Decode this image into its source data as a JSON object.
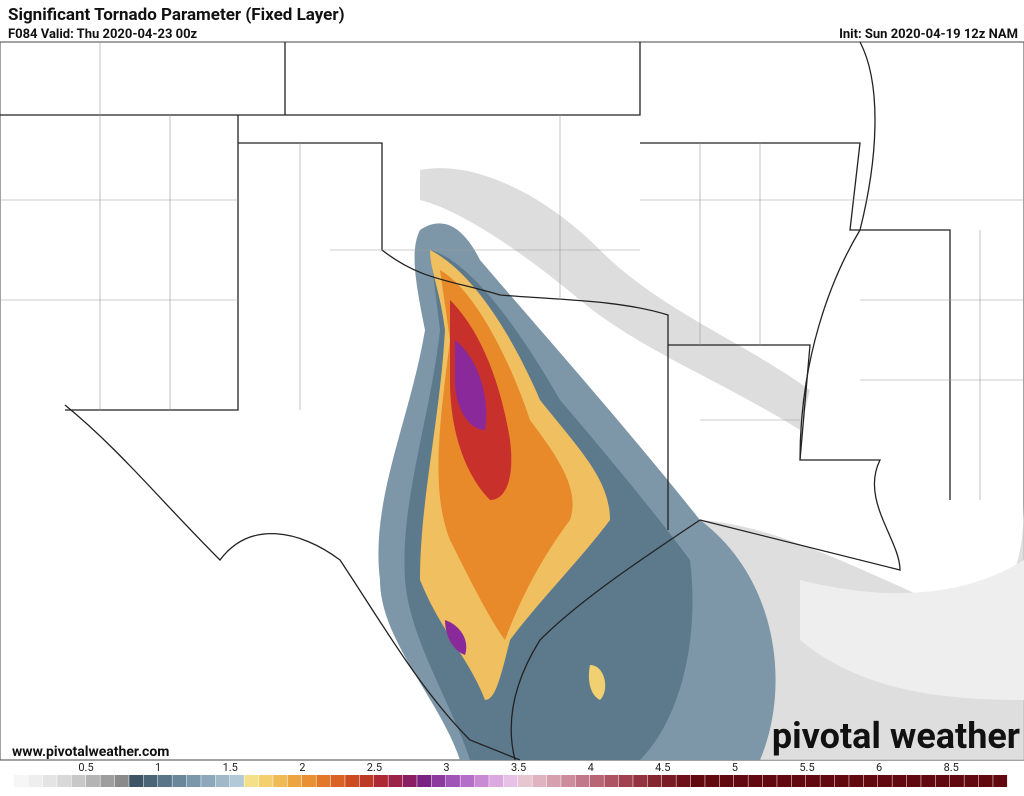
{
  "header": {
    "title": "Significant Tornado Parameter (Fixed Layer)",
    "valid": "F084 Valid: Thu 2020-04-23 00z",
    "init": "Init: Sun 2020-04-19 12z NAM"
  },
  "footer": {
    "website": "www.pivotalweather.com",
    "logo": "pivotal weather"
  },
  "colorbar": {
    "labels": [
      0.5,
      1,
      1.5,
      2,
      2.5,
      3,
      3.5,
      4,
      4.5,
      5,
      5.5,
      6,
      8.5
    ]
  }
}
